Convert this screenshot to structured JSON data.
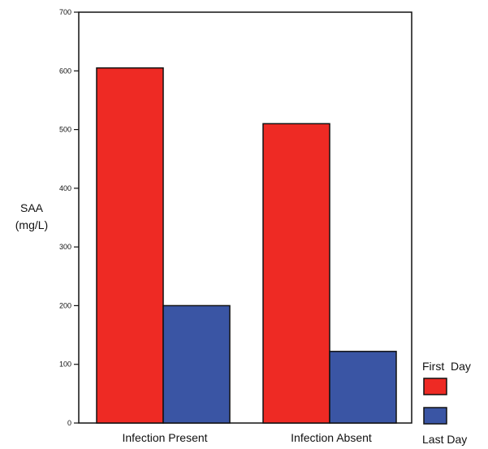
{
  "chart_data": {
    "type": "bar",
    "categories": [
      "Infection Present",
      "Infection Absent"
    ],
    "series": [
      {
        "name": "First  Day",
        "values": [
          605,
          510
        ],
        "color": "#ee2a24"
      },
      {
        "name": "Last Day",
        "values": [
          200,
          122
        ],
        "color": "#3a55a4"
      }
    ],
    "ylabel_lines": [
      "SAA",
      "(mg/L)"
    ],
    "ylim": [
      0,
      700
    ],
    "yticks": [
      0,
      100,
      200,
      300,
      400,
      500,
      600,
      700
    ],
    "ytick_labels": [
      "0",
      "100",
      "200",
      "300",
      "400",
      "500",
      "600",
      "700"
    ],
    "grid": false,
    "legend_position": "bottom-right"
  }
}
